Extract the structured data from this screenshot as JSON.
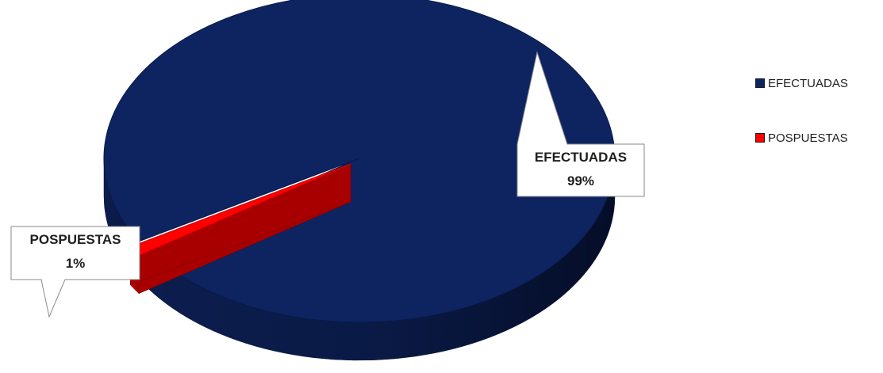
{
  "chart_data": {
    "type": "pie",
    "variant": "3d-exploded",
    "categories": [
      "EFECTUADAS",
      "POSPUESTAS"
    ],
    "values": [
      99,
      1
    ],
    "value_labels": [
      "99%",
      "1%"
    ],
    "colors": [
      "#0d2460",
      "#ff0000"
    ],
    "legend": "right",
    "title": ""
  },
  "legend": {
    "items": [
      {
        "label": "EFECTUADAS",
        "color": "#0d2460"
      },
      {
        "label": "POSPUESTAS",
        "color": "#ff0000"
      }
    ]
  },
  "data_labels": {
    "efectuadas": {
      "name": "EFECTUADAS",
      "value": "99%"
    },
    "pospuestas": {
      "name": "POSPUESTAS",
      "value": "1%"
    }
  }
}
